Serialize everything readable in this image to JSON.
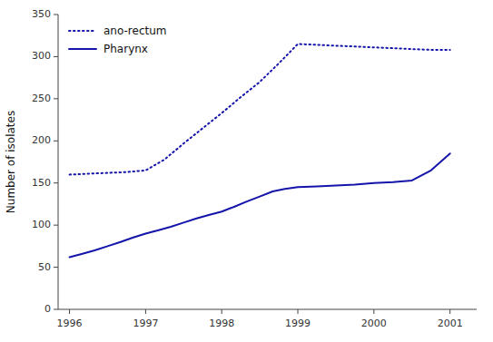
{
  "chart_data": {
    "type": "line",
    "y_label": "Number of isolates",
    "series": [
      {
        "name": "ano-rectum",
        "color": "#1414aa",
        "line_style": "dotted",
        "x": [
          1996.0,
          1996.25,
          1996.5,
          1996.75,
          1997.0,
          1997.25,
          1997.5,
          1997.75,
          1998.0,
          1998.25,
          1998.5,
          1998.75,
          1999.0,
          1999.25,
          1999.5,
          1999.75,
          2000.0,
          2000.25,
          2000.5,
          2000.75,
          2001.0
        ],
        "values": [
          160,
          161,
          162,
          163,
          165,
          178,
          197,
          215,
          233,
          252,
          270,
          292,
          315,
          314,
          313,
          312,
          311,
          310,
          309,
          308,
          308
        ]
      },
      {
        "name": "Pharynx",
        "color": "#1414aa",
        "line_style": "solid",
        "x": [
          1996.0,
          1996.17,
          1996.33,
          1996.5,
          1996.67,
          1996.83,
          1997.0,
          1997.17,
          1997.33,
          1997.5,
          1997.67,
          1997.83,
          1998.0,
          1998.17,
          1998.33,
          1998.5,
          1998.67,
          1998.83,
          1999.0,
          1999.25,
          1999.5,
          1999.75,
          2000.0,
          2000.25,
          2000.5,
          2000.75,
          2001.0
        ],
        "values": [
          62,
          66,
          70,
          75,
          80,
          85,
          90,
          94,
          98,
          103,
          108,
          112,
          116,
          122,
          128,
          134,
          140,
          143,
          145,
          146,
          147,
          148,
          150,
          151,
          153,
          165,
          185
        ]
      }
    ],
    "xlim": [
      1995.85,
      2001.35
    ],
    "xticks": [
      1996,
      1997,
      1998,
      1999,
      2000,
      2001
    ],
    "ylim": [
      0,
      350
    ],
    "yticks": [
      0,
      50,
      100,
      150,
      200,
      250,
      300,
      350
    ],
    "grid": false,
    "legend": "upper-left"
  }
}
